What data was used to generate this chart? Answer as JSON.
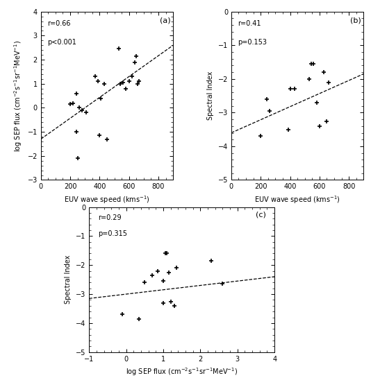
{
  "panel_a": {
    "label": "(a)",
    "r": "r=0.66",
    "p": "p<0.001",
    "xlabel": "EUV wave speed (kms$^{-1}$)",
    "ylabel": "log SEP flux (cm$^{-2}$s$^{-1}$sr$^{-1}$MeV$^{-1}$)",
    "xlim": [
      0,
      900
    ],
    "ylim": [
      -3,
      4
    ],
    "xticks": [
      0,
      200,
      400,
      600,
      800
    ],
    "yticks": [
      -3,
      -2,
      -1,
      0,
      1,
      2,
      3,
      4
    ],
    "x": [
      200,
      220,
      240,
      240,
      250,
      260,
      280,
      310,
      370,
      390,
      400,
      410,
      430,
      450,
      530,
      540,
      560,
      580,
      600,
      620,
      640,
      650,
      660,
      670
    ],
    "y": [
      0.15,
      0.2,
      -1.0,
      0.6,
      -2.1,
      0.0,
      -0.1,
      -0.2,
      1.3,
      1.1,
      -1.15,
      0.4,
      1.0,
      -1.3,
      2.45,
      1.0,
      1.05,
      0.8,
      1.1,
      1.3,
      1.9,
      2.15,
      1.0,
      1.1
    ],
    "fit_x": [
      0,
      900
    ],
    "fit_y": [
      -1.3,
      2.6
    ]
  },
  "panel_b": {
    "label": "(b)",
    "r": "r=0.41",
    "p": "p=0.153",
    "xlabel": "EUV wave speed (kms$^{-1}$)",
    "ylabel": "Spectral Index",
    "xlim": [
      0,
      900
    ],
    "ylim": [
      -5,
      0
    ],
    "xticks": [
      0,
      200,
      400,
      600,
      800
    ],
    "yticks": [
      -5,
      -4,
      -3,
      -2,
      -1,
      0
    ],
    "x": [
      200,
      240,
      260,
      390,
      400,
      430,
      530,
      545,
      560,
      580,
      600,
      630,
      650,
      660
    ],
    "y": [
      -3.7,
      -2.6,
      -2.95,
      -3.5,
      -2.3,
      -2.3,
      -2.0,
      -1.55,
      -1.55,
      -2.7,
      -3.4,
      -1.8,
      -3.25,
      -2.1
    ],
    "fit_x": [
      0,
      900
    ],
    "fit_y": [
      -3.6,
      -1.85
    ]
  },
  "panel_c": {
    "label": "(c)",
    "r": "r=0.29",
    "p": "p=0.315",
    "xlabel": "log SEP flux (cm$^{-2}$s$^{-1}$sr$^{-1}$MeV$^{-1}$)",
    "ylabel": "Spectral Index",
    "xlim": [
      -1,
      4
    ],
    "ylim": [
      -5,
      0
    ],
    "xticks": [
      -1,
      0,
      1,
      2,
      3,
      4
    ],
    "yticks": [
      -5,
      -4,
      -3,
      -2,
      -1,
      0
    ],
    "x": [
      -0.1,
      0.35,
      0.5,
      0.7,
      0.85,
      1.0,
      1.0,
      1.05,
      1.1,
      1.15,
      1.2,
      1.3,
      1.35,
      2.3,
      2.6
    ],
    "y": [
      -3.7,
      -3.85,
      -2.6,
      -2.35,
      -2.2,
      -2.55,
      -3.3,
      -1.6,
      -1.6,
      -2.25,
      -3.25,
      -3.4,
      -2.1,
      -1.85,
      -2.65
    ],
    "fit_x": [
      -1,
      4
    ],
    "fit_y": [
      -3.15,
      -2.4
    ]
  },
  "marker": "+",
  "markersize": 5,
  "marker_mew": 1.2,
  "linewidth": 0.9,
  "line_color": "black",
  "marker_color": "black",
  "bg_color": "white",
  "annot_font_size": 7,
  "label_font_size": 7,
  "tick_font_size": 7,
  "panel_label_font_size": 8
}
